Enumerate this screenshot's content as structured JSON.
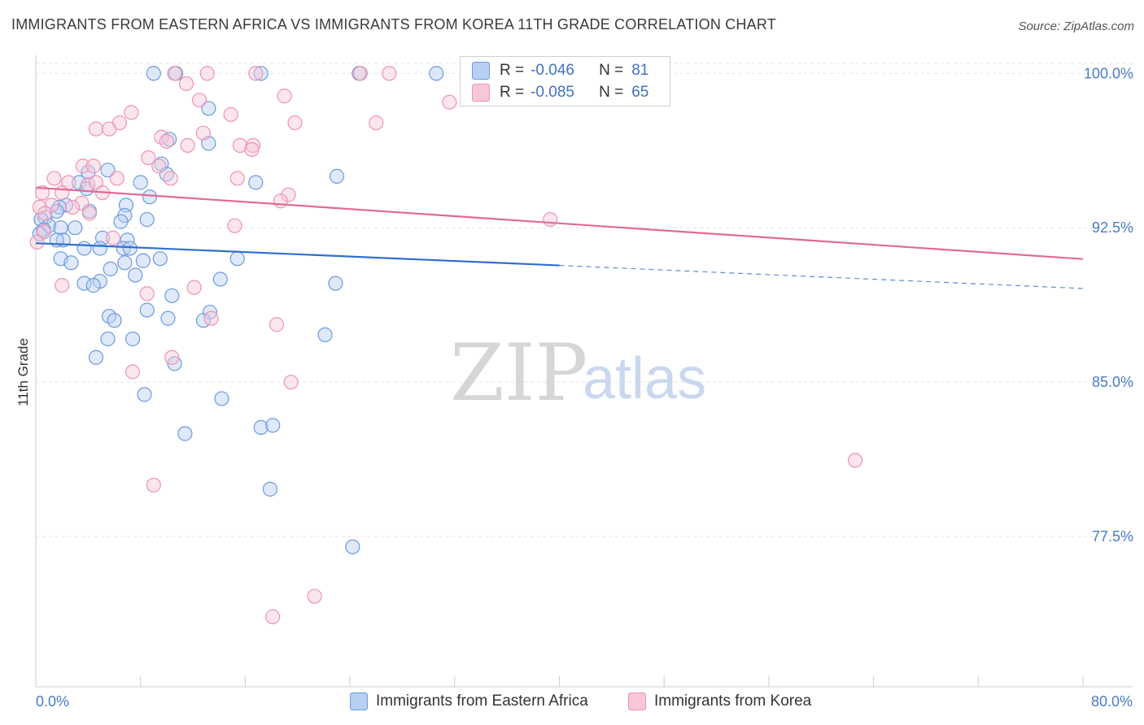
{
  "title": "IMMIGRANTS FROM EASTERN AFRICA VS IMMIGRANTS FROM KOREA 11TH GRADE CORRELATION CHART",
  "source": "Source: ZipAtlas.com",
  "watermark": {
    "zip": "ZIP",
    "atlas": "atlas"
  },
  "legend": {
    "rows": [
      {
        "r_label": "R =",
        "r_value": "-0.046",
        "n_label": "N =",
        "n_value": "81",
        "color": "#5b8fd9"
      },
      {
        "r_label": "R =",
        "r_value": "-0.085",
        "n_label": "N =",
        "n_value": "65",
        "color": "#e8799f"
      }
    ]
  },
  "bottom_legend": {
    "series_a": "Immigrants from Eastern Africa",
    "series_b": "Immigrants from Korea"
  },
  "chart_data": {
    "type": "scatter",
    "title": "IMMIGRANTS FROM EASTERN AFRICA VS IMMIGRANTS FROM KOREA 11TH GRADE CORRELATION CHART",
    "xlabel": "",
    "ylabel": "11th Grade",
    "xlim": [
      0,
      80
    ],
    "ylim": [
      70.2,
      100.8
    ],
    "x_tick_labels": [
      {
        "value": 0,
        "label": "0.0%"
      },
      {
        "value": 80,
        "label": "80.0%"
      }
    ],
    "y_ticks": [
      {
        "value": 100,
        "label": "100.0%"
      },
      {
        "value": 92.5,
        "label": "92.5%"
      },
      {
        "value": 85,
        "label": "85.0%"
      },
      {
        "value": 77.5,
        "label": "77.5%"
      }
    ],
    "grid": true,
    "colors": {
      "blue_stroke": "#6b9be0",
      "blue_fill": "#b9cff1",
      "pink_stroke": "#ee93b3",
      "pink_fill": "#f7c7d8",
      "blue_line": "#2f6fcf",
      "pink_line": "#e06a95"
    },
    "series": [
      {
        "name": "Immigrants from Eastern Africa",
        "R": -0.046,
        "N": 81,
        "trend": {
          "x": [
            0,
            40,
            80
          ],
          "y": [
            91.75,
            90.67,
            89.55
          ],
          "solid_until": 40
        },
        "points": [
          [
            9.0,
            100.0
          ],
          [
            10.7,
            100.0
          ],
          [
            17.2,
            100.0
          ],
          [
            24.7,
            100.0
          ],
          [
            30.6,
            100.0
          ],
          [
            33.3,
            100.0
          ],
          [
            13.2,
            98.3
          ],
          [
            10.2,
            96.8
          ],
          [
            13.2,
            96.6
          ],
          [
            9.6,
            95.6
          ],
          [
            10.0,
            95.1
          ],
          [
            5.5,
            95.3
          ],
          [
            4.0,
            95.2
          ],
          [
            3.3,
            94.7
          ],
          [
            8.0,
            94.7
          ],
          [
            16.8,
            94.7
          ],
          [
            23.0,
            95.0
          ],
          [
            3.9,
            94.4
          ],
          [
            8.7,
            94.0
          ],
          [
            2.3,
            93.6
          ],
          [
            1.8,
            93.5
          ],
          [
            1.6,
            93.3
          ],
          [
            4.1,
            93.3
          ],
          [
            6.9,
            93.6
          ],
          [
            0.7,
            93.0
          ],
          [
            0.4,
            92.9
          ],
          [
            6.8,
            93.1
          ],
          [
            1.0,
            92.6
          ],
          [
            0.6,
            92.4
          ],
          [
            1.9,
            92.5
          ],
          [
            3.0,
            92.5
          ],
          [
            6.5,
            92.8
          ],
          [
            8.5,
            92.9
          ],
          [
            0.3,
            92.2
          ],
          [
            2.1,
            91.9
          ],
          [
            1.6,
            91.9
          ],
          [
            5.1,
            92.0
          ],
          [
            7.0,
            91.9
          ],
          [
            4.9,
            91.5
          ],
          [
            3.7,
            91.5
          ],
          [
            6.7,
            91.5
          ],
          [
            7.2,
            91.5
          ],
          [
            1.9,
            91.0
          ],
          [
            2.7,
            90.8
          ],
          [
            6.8,
            90.8
          ],
          [
            8.2,
            90.9
          ],
          [
            9.5,
            91.0
          ],
          [
            15.4,
            91.0
          ],
          [
            5.7,
            90.5
          ],
          [
            7.6,
            90.2
          ],
          [
            4.9,
            89.9
          ],
          [
            14.1,
            90.0
          ],
          [
            3.7,
            89.8
          ],
          [
            4.4,
            89.7
          ],
          [
            22.9,
            89.8
          ],
          [
            10.4,
            89.2
          ],
          [
            8.5,
            88.5
          ],
          [
            5.6,
            88.2
          ],
          [
            13.3,
            88.4
          ],
          [
            6.0,
            88.0
          ],
          [
            10.1,
            88.1
          ],
          [
            12.8,
            88.0
          ],
          [
            22.1,
            87.3
          ],
          [
            5.5,
            87.1
          ],
          [
            7.4,
            87.1
          ],
          [
            4.6,
            86.2
          ],
          [
            10.6,
            85.9
          ],
          [
            8.3,
            84.4
          ],
          [
            14.2,
            84.2
          ],
          [
            11.4,
            82.5
          ],
          [
            17.2,
            82.8
          ],
          [
            18.1,
            82.9
          ],
          [
            17.9,
            79.8
          ],
          [
            24.2,
            77.0
          ]
        ]
      },
      {
        "name": "Immigrants from Korea",
        "R": -0.085,
        "N": 65,
        "trend": {
          "x": [
            0,
            80
          ],
          "y": [
            94.45,
            90.98
          ]
        },
        "points": [
          [
            10.6,
            100.0
          ],
          [
            13.1,
            100.0
          ],
          [
            16.8,
            100.0
          ],
          [
            24.8,
            100.0
          ],
          [
            27.0,
            100.0
          ],
          [
            39.0,
            100.0
          ],
          [
            11.5,
            99.5
          ],
          [
            19.0,
            98.9
          ],
          [
            12.5,
            98.7
          ],
          [
            31.6,
            98.6
          ],
          [
            7.3,
            98.1
          ],
          [
            14.9,
            98.0
          ],
          [
            6.4,
            97.6
          ],
          [
            19.8,
            97.6
          ],
          [
            26.0,
            97.6
          ],
          [
            4.6,
            97.3
          ],
          [
            5.6,
            97.3
          ],
          [
            12.8,
            97.1
          ],
          [
            9.6,
            96.9
          ],
          [
            10.0,
            96.7
          ],
          [
            11.6,
            96.5
          ],
          [
            15.6,
            96.5
          ],
          [
            16.6,
            96.5
          ],
          [
            16.5,
            96.3
          ],
          [
            8.6,
            95.9
          ],
          [
            3.6,
            95.5
          ],
          [
            4.4,
            95.5
          ],
          [
            9.4,
            95.5
          ],
          [
            6.2,
            94.9
          ],
          [
            10.3,
            94.9
          ],
          [
            15.4,
            94.9
          ],
          [
            1.4,
            94.9
          ],
          [
            4.0,
            94.6
          ],
          [
            2.5,
            94.7
          ],
          [
            4.6,
            94.7
          ],
          [
            2.0,
            94.2
          ],
          [
            5.1,
            94.2
          ],
          [
            19.3,
            94.1
          ],
          [
            0.5,
            94.2
          ],
          [
            18.7,
            93.8
          ],
          [
            3.5,
            93.7
          ],
          [
            1.2,
            93.6
          ],
          [
            0.3,
            93.5
          ],
          [
            2.8,
            93.5
          ],
          [
            0.7,
            93.2
          ],
          [
            4.1,
            93.2
          ],
          [
            39.3,
            92.9
          ],
          [
            15.2,
            92.6
          ],
          [
            0.6,
            92.3
          ],
          [
            5.9,
            92.0
          ],
          [
            0.1,
            91.8
          ],
          [
            2.0,
            89.7
          ],
          [
            8.5,
            89.3
          ],
          [
            12.1,
            89.6
          ],
          [
            13.4,
            88.1
          ],
          [
            18.4,
            87.8
          ],
          [
            10.4,
            86.2
          ],
          [
            7.4,
            85.5
          ],
          [
            19.5,
            85.0
          ],
          [
            62.6,
            81.2
          ],
          [
            9.0,
            80.0
          ],
          [
            21.3,
            74.6
          ],
          [
            18.1,
            73.6
          ]
        ]
      }
    ]
  }
}
